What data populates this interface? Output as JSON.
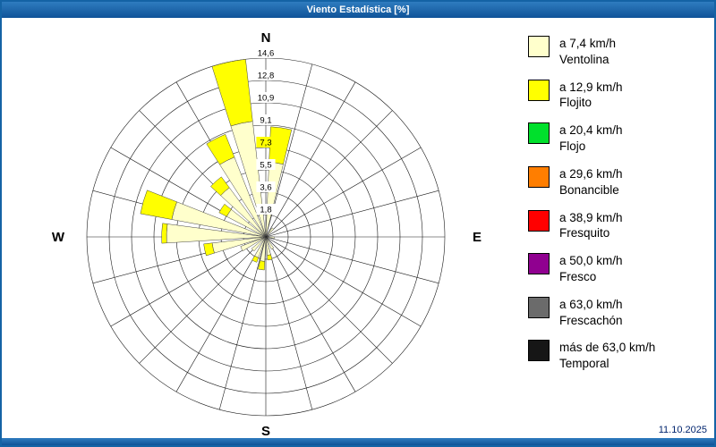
{
  "window": {
    "title": "Viento Estadística [%]",
    "accent_color": "#1463A5"
  },
  "footer": {
    "date": "11.10.2025"
  },
  "compass": {
    "north": "N",
    "south": "S",
    "east": "E",
    "west": "W"
  },
  "chart_data": {
    "type": "wind-rose",
    "title": "Viento Estadística [%]",
    "units": "%",
    "max": 14.6,
    "radial_ticks": [
      1.8,
      3.6,
      5.5,
      7.3,
      9.1,
      10.9,
      12.8,
      14.6
    ],
    "radial_tick_labels": [
      "1,8",
      "3,6",
      "5,5",
      "7,3",
      "9,1",
      "10,9",
      "12,8",
      "14,6"
    ],
    "tick_backgrounds": [
      "#FFFFFF",
      "#FFFFFF",
      "#FFFFFF",
      "#FFFF00",
      "#FFFFFF",
      "#FFFFFF",
      "#FFFFFF",
      "#FFFFFF"
    ],
    "grid": {
      "rings": 8,
      "spokes": 24,
      "line_color": "#1a1a1a"
    },
    "series_colors": {
      "ventolina": "#FFFFCC",
      "flojito": "#FFFF00"
    },
    "sector_width_deg": 11,
    "sectors": [
      {
        "angle": 348,
        "ventolina": 9.5,
        "flojito": 5.1
      },
      {
        "angle": 8,
        "ventolina": 6.1,
        "flojito": 2.9
      },
      {
        "angle": 333,
        "ventolina": 7.0,
        "flojito": 2.0
      },
      {
        "angle": 318,
        "ventolina": 5.0,
        "flojito": 1.1
      },
      {
        "angle": 303,
        "ventolina": 3.6,
        "flojito": 0.7
      },
      {
        "angle": 286,
        "ventolina": 7.8,
        "flojito": 2.6
      },
      {
        "angle": 272,
        "ventolina": 8.1,
        "flojito": 0.4
      },
      {
        "angle": 258,
        "ventolina": 4.4,
        "flojito": 0.7
      },
      {
        "angle": 244,
        "ventolina": 2.2,
        "flojito": 0.0
      },
      {
        "angle": 225,
        "ventolina": 1.5,
        "flojito": 0.0
      },
      {
        "angle": 205,
        "ventolina": 1.8,
        "flojito": 0.4
      },
      {
        "angle": 188,
        "ventolina": 2.0,
        "flojito": 0.7
      },
      {
        "angle": 170,
        "ventolina": 1.5,
        "flojito": 0.4
      },
      {
        "angle": 150,
        "ventolina": 1.1,
        "flojito": 0.0
      },
      {
        "angle": 95,
        "ventolina": 0.7,
        "flojito": 0.0
      },
      {
        "angle": 40,
        "ventolina": 0.9,
        "flojito": 0.0
      }
    ]
  },
  "legend": {
    "items": [
      {
        "speed": "a 7,4 km/h",
        "name": "Ventolina",
        "color": "#FFFFCC"
      },
      {
        "speed": "a 12,9 km/h",
        "name": "Flojito",
        "color": "#FFFF00"
      },
      {
        "speed": "a 20,4 km/h",
        "name": "Flojo",
        "color": "#00E02C"
      },
      {
        "speed": "a 29,6 km/h",
        "name": "Bonancible",
        "color": "#FF7E00"
      },
      {
        "speed": "a 38,9 km/h",
        "name": "Fresquito",
        "color": "#FF0000"
      },
      {
        "speed": "a 50,0 km/h",
        "name": "Fresco",
        "color": "#900090"
      },
      {
        "speed": "a 63,0 km/h",
        "name": "Frescachón",
        "color": "#6B6B6B"
      },
      {
        "speed": "más de 63,0 km/h",
        "name": "Temporal",
        "color": "#161616"
      }
    ]
  }
}
